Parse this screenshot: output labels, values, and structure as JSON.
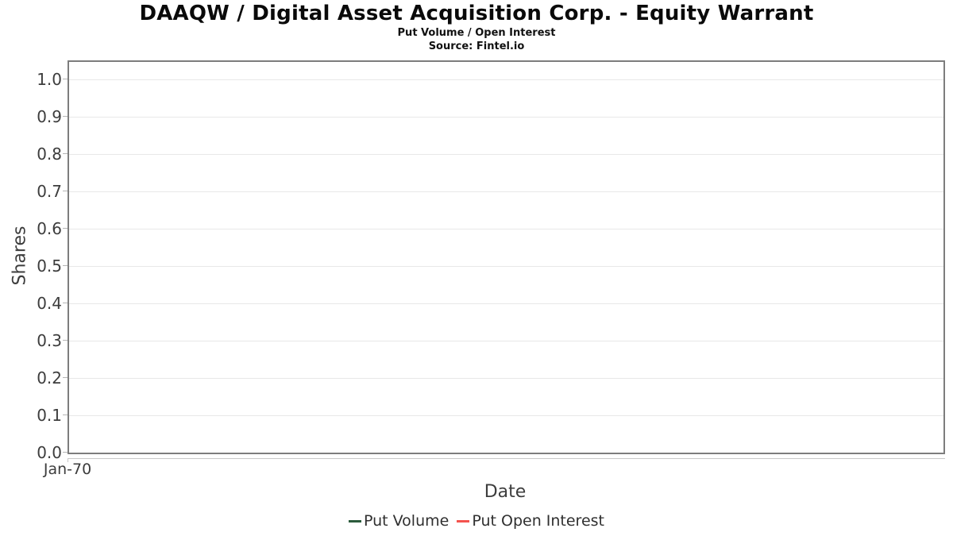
{
  "header": {
    "title": "DAAQW / Digital Asset Acquisition Corp. - Equity Warrant",
    "subtitle": "Put Volume / Open Interest",
    "source": "Source: Fintel.io"
  },
  "chart_data": {
    "type": "line",
    "title": "DAAQW / Digital Asset Acquisition Corp. - Equity Warrant",
    "subtitle": "Put Volume / Open Interest",
    "source_note": "Source: Fintel.io",
    "xlabel": "Date",
    "ylabel": "Shares",
    "ylim": [
      0.0,
      1.05
    ],
    "yticks": [
      0.0,
      0.1,
      0.2,
      0.3,
      0.4,
      0.5,
      0.6,
      0.7,
      0.8,
      0.9,
      1.0
    ],
    "ytick_labels": [
      "0.0",
      "0.1",
      "0.2",
      "0.3",
      "0.4",
      "0.5",
      "0.6",
      "0.7",
      "0.8",
      "0.9",
      "1.0"
    ],
    "xtick_labels": [
      "Jan-70"
    ],
    "grid": true,
    "legend_position": "bottom",
    "series": [
      {
        "name": "Put Volume",
        "color": "#2b5b3c",
        "x": [],
        "values": []
      },
      {
        "name": "Put Open Interest",
        "color": "#f4534e",
        "x": [],
        "values": []
      }
    ]
  },
  "colors": {
    "plot_border": "#7d7d7d",
    "gridline": "#e8e8e8",
    "ytick_mark": "#b5b5b5",
    "x_axis_line": "#c9c9c9",
    "axis_text": "#3d3d3d"
  }
}
